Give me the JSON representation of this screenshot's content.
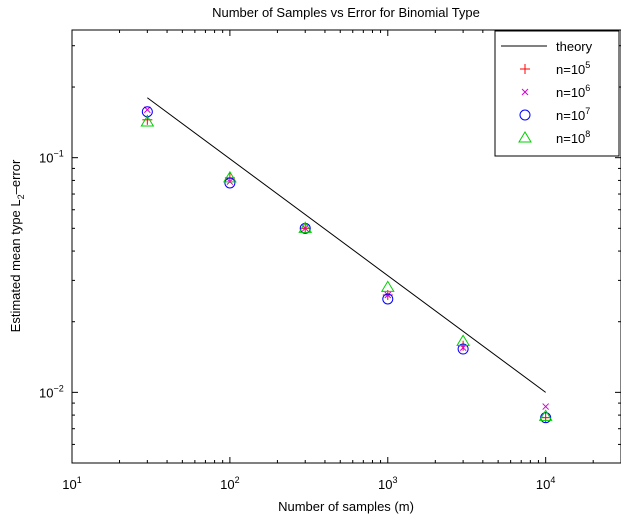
{
  "chart_data": {
    "type": "scatter",
    "title": "Number of Samples vs Error for Binomial Type",
    "xlabel": "Number of samples (m)",
    "ylabel_main": "Estimated mean type L",
    "ylabel_sub": "2",
    "ylabel_tail": "–error",
    "x_scale": "log",
    "y_scale": "log",
    "xlim": [
      10,
      30000
    ],
    "ylim": [
      0.005,
      0.35
    ],
    "x_ticks": [
      {
        "value": 10,
        "base": "10",
        "exp": "1"
      },
      {
        "value": 100,
        "base": "10",
        "exp": "2"
      },
      {
        "value": 1000,
        "base": "10",
        "exp": "3"
      },
      {
        "value": 10000,
        "base": "10",
        "exp": "4"
      }
    ],
    "y_ticks": [
      {
        "value": 0.01,
        "base": "10",
        "exp": "−2"
      },
      {
        "value": 0.1,
        "base": "10",
        "exp": "−1"
      }
    ],
    "grid": false,
    "legend_position": "top-right",
    "series": [
      {
        "name": "theory",
        "legend_base": "theory",
        "legend_exp": "",
        "kind": "line",
        "color": "#000000",
        "x": [
          30,
          10000
        ],
        "y": [
          0.18,
          0.01
        ]
      },
      {
        "name": "n=10^5",
        "legend_base": "n=10",
        "legend_exp": "5",
        "kind": "marker",
        "marker": "plus",
        "color": "#ff0000",
        "x": [
          30,
          100,
          300,
          1000,
          3000,
          10000
        ],
        "y": [
          0.145,
          0.082,
          0.05,
          0.026,
          0.0158,
          0.0078
        ]
      },
      {
        "name": "n=10^6",
        "legend_base": "n=10",
        "legend_exp": "6",
        "kind": "marker",
        "marker": "x",
        "color": "#d400d4",
        "x": [
          30,
          100,
          300,
          1000,
          3000,
          10000
        ],
        "y": [
          0.16,
          0.079,
          0.05,
          0.026,
          0.0155,
          0.0087
        ]
      },
      {
        "name": "n=10^7",
        "legend_base": "n=10",
        "legend_exp": "7",
        "kind": "marker",
        "marker": "circle",
        "color": "#0000ff",
        "x": [
          30,
          100,
          300,
          1000,
          3000,
          10000
        ],
        "y": [
          0.157,
          0.078,
          0.05,
          0.025,
          0.0153,
          0.0078
        ]
      },
      {
        "name": "n=10^8",
        "legend_base": "n=10",
        "legend_exp": "8",
        "kind": "marker",
        "marker": "triangle",
        "color": "#00d000",
        "x": [
          30,
          100,
          300,
          1000,
          3000,
          10000
        ],
        "y": [
          0.142,
          0.082,
          0.05,
          0.028,
          0.0165,
          0.0079
        ]
      }
    ]
  }
}
